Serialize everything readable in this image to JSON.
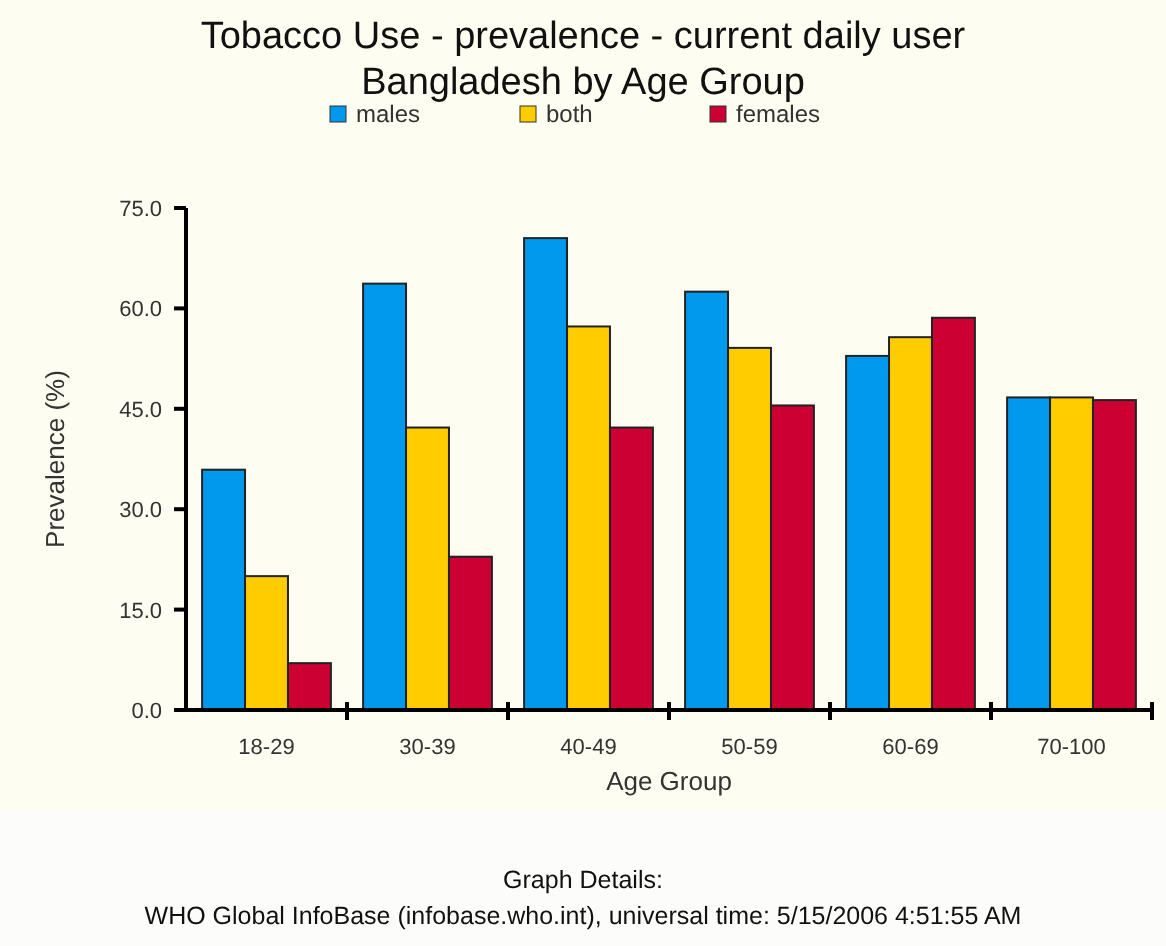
{
  "chart_data": {
    "type": "bar",
    "title": "Tobacco Use - prevalence - current daily user\nBangladesh by Age Group",
    "xlabel": "Age Group",
    "ylabel": "Prevalence (%)",
    "categories": [
      "18-29",
      "30-39",
      "40-49",
      "50-59",
      "60-69",
      "70-100"
    ],
    "series": [
      {
        "name": "males",
        "color": "#0099ee",
        "values": [
          35.9,
          63.7,
          70.5,
          62.5,
          52.9,
          46.7
        ]
      },
      {
        "name": "both",
        "color": "#ffcc00",
        "values": [
          20.0,
          42.2,
          57.3,
          54.1,
          55.7,
          46.7
        ]
      },
      {
        "name": "females",
        "color": "#cc0033",
        "values": [
          7.0,
          22.9,
          42.2,
          45.5,
          58.6,
          46.3
        ]
      }
    ],
    "ylim": [
      0,
      75
    ],
    "yticks": [
      {
        "value": 0,
        "label": "0.0"
      },
      {
        "value": 15,
        "label": "15.0"
      },
      {
        "value": 30,
        "label": "30.0"
      },
      {
        "value": 45,
        "label": "45.0"
      },
      {
        "value": 60,
        "label": "60.0"
      },
      {
        "value": 75,
        "label": "75.0"
      }
    ],
    "legend": "top",
    "grid": false,
    "annotations": [
      "Graph Details:",
      "WHO Global InfoBase (infobase.who.int), universal time: 5/15/2006 4:51:55 AM"
    ]
  }
}
